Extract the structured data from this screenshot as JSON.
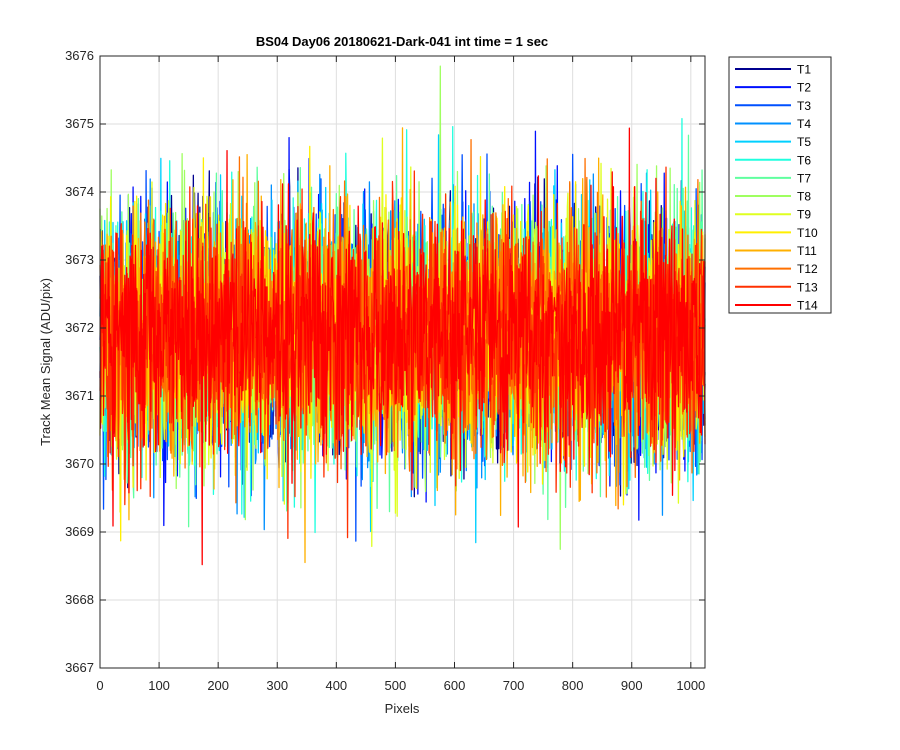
{
  "chart_data": {
    "type": "line",
    "title": "BS04 Day06 20180621-Dark-041 int time = 1 sec",
    "xlabel": "Pixels",
    "ylabel": "Track Mean Signal (ADU/pix)",
    "xlim": [
      0,
      1024
    ],
    "ylim": [
      3667,
      3676
    ],
    "xticks": [
      0,
      100,
      200,
      300,
      400,
      500,
      600,
      700,
      800,
      900,
      1000
    ],
    "yticks": [
      3667,
      3668,
      3669,
      3670,
      3671,
      3672,
      3673,
      3674,
      3675,
      3676
    ],
    "grid": true,
    "legend_position": "outside-top-right",
    "x_step": 1,
    "series_mean": 3671.9,
    "series_spread": 0.9,
    "series": [
      {
        "name": "T1",
        "color": "#00008f"
      },
      {
        "name": "T2",
        "color": "#0010ff"
      },
      {
        "name": "T3",
        "color": "#0050ff"
      },
      {
        "name": "T4",
        "color": "#0090ff"
      },
      {
        "name": "T5",
        "color": "#00d0ff"
      },
      {
        "name": "T6",
        "color": "#20ffdf"
      },
      {
        "name": "T7",
        "color": "#60ff9f"
      },
      {
        "name": "T8",
        "color": "#9fff60"
      },
      {
        "name": "T9",
        "color": "#dfff20"
      },
      {
        "name": "T10",
        "color": "#ffef00"
      },
      {
        "name": "T11",
        "color": "#ffb000"
      },
      {
        "name": "T12",
        "color": "#ff7000"
      },
      {
        "name": "T13",
        "color": "#ff3000"
      },
      {
        "name": "T14",
        "color": "#ff0000"
      }
    ]
  }
}
